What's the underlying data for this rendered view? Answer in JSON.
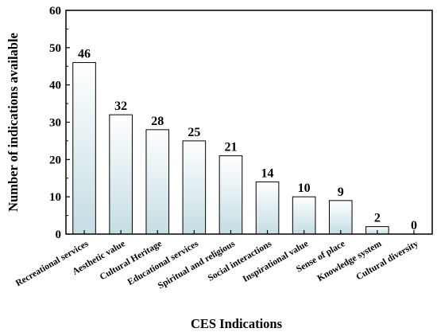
{
  "chart_data": {
    "type": "bar",
    "categories": [
      "Recreational services",
      "Aesthetic value",
      "Cultural Heritage",
      "Educational services",
      "Spiritual and religious",
      "Social interactions",
      "Inspirational value",
      "Sense of place",
      "Knowledge system",
      "Cultural diversity"
    ],
    "values": [
      46,
      32,
      28,
      25,
      21,
      14,
      10,
      9,
      2,
      0
    ],
    "data_labels": [
      "46",
      "32",
      "28",
      "25",
      "21",
      "14",
      "10",
      "9",
      "2",
      "0"
    ],
    "xlabel": "CES Indications",
    "ylabel": "Number of indications available",
    "ylim": [
      0,
      60
    ],
    "yticks": [
      "0",
      "10",
      "20",
      "30",
      "40",
      "50",
      "60"
    ],
    "grid": false,
    "legend": "none",
    "bar_fill_top": "#ffffff",
    "bar_fill_bottom": "#c4dde3",
    "bar_stroke": "#000000"
  }
}
